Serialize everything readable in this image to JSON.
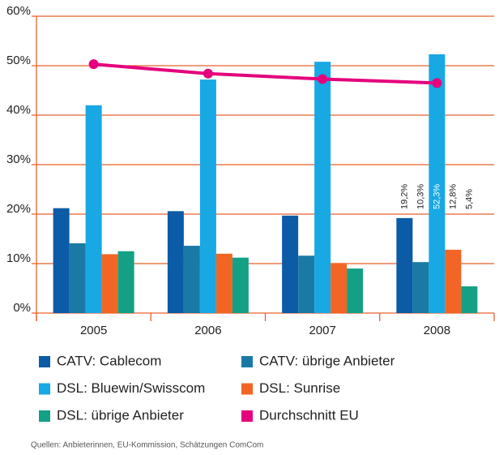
{
  "chart_data": {
    "type": "bar",
    "categories": [
      "2005",
      "2006",
      "2007",
      "2008"
    ],
    "series": [
      {
        "name": "CATV: Cablecom",
        "color": "#0b5ba7",
        "values": [
          21.2,
          20.6,
          19.7,
          19.2
        ],
        "value_labels": [
          null,
          null,
          null,
          "19,2%"
        ]
      },
      {
        "name": "CATV: übrige Anbieter",
        "color": "#1a7aa5",
        "values": [
          14.1,
          13.6,
          11.6,
          10.3
        ],
        "value_labels": [
          null,
          null,
          null,
          "10,3%"
        ]
      },
      {
        "name": "DSL: Bluewin/Swisscom",
        "color": "#18a8e4",
        "values": [
          42.0,
          47.2,
          50.8,
          52.3
        ],
        "value_labels": [
          null,
          null,
          null,
          "52,3%"
        ]
      },
      {
        "name": "DSL: Sunrise",
        "color": "#f26524",
        "values": [
          11.9,
          12.0,
          10.1,
          12.8
        ],
        "value_labels": [
          null,
          null,
          null,
          "12,8%"
        ]
      },
      {
        "name": "DSL: übrige Anbieter",
        "color": "#13a084",
        "values": [
          12.5,
          11.2,
          9.0,
          5.4
        ],
        "value_labels": [
          null,
          null,
          null,
          "5,4%"
        ]
      },
      {
        "name": "Durchschnitt EU",
        "color": "#e5007d",
        "type": "line",
        "values": [
          50.3,
          48.4,
          47.3,
          46.5
        ]
      }
    ],
    "ylim": [
      0,
      60
    ],
    "yticks": [
      {
        "value": 0,
        "label": "0%"
      },
      {
        "value": 10,
        "label": "10%"
      },
      {
        "value": 20,
        "label": "20%"
      },
      {
        "value": 30,
        "label": "30%"
      },
      {
        "value": 40,
        "label": "40%"
      },
      {
        "value": 50,
        "label": "50%"
      },
      {
        "value": 60,
        "label": "60%"
      }
    ],
    "grid": true,
    "source": "Quellen: Anbieterinnen, EU-Kommission, Schätzungen ComCom"
  }
}
